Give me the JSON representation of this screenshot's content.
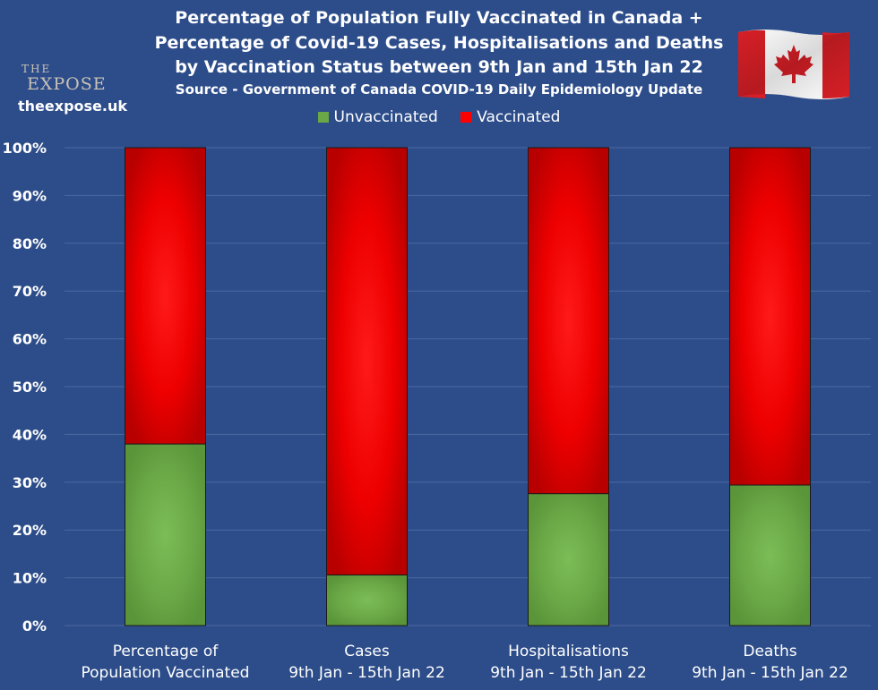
{
  "brand": {
    "logo_word1": "THE",
    "logo_word2": "EXPOSE",
    "site": "theexpose.uk"
  },
  "colors": {
    "background": "#2d4d8a",
    "unvaccinated": "#6aa746",
    "vaccinated": "#ff0000",
    "bar_edge": "#1a1a1a",
    "gridline": "#4b68a0"
  },
  "flag": {
    "icon": "canada-flag-icon"
  },
  "chart_data": {
    "type": "bar",
    "stacked": true,
    "title_lines": [
      "Percentage of Population Fully Vaccinated in Canada +",
      "Percentage of Covid-19 Cases, Hospitalisations and Deaths",
      "by Vaccination Status between 9th Jan and 15th Jan 22"
    ],
    "subtitle": "Source - Government of Canada COVID-19 Daily Epidemiology Update",
    "categories": [
      [
        "Percentage of",
        "Population Vaccinated"
      ],
      [
        "Cases",
        "9th Jan - 15th Jan 22"
      ],
      [
        "Hospitalisations",
        "9th Jan - 15th Jan 22"
      ],
      [
        "Deaths",
        "9th Jan - 15th Jan 22"
      ]
    ],
    "series": [
      {
        "name": "Unvaccinated",
        "values": [
          38,
          10.6,
          27.6,
          29.4
        ]
      },
      {
        "name": "Vaccinated",
        "values": [
          62,
          89.4,
          72.4,
          70.6
        ]
      }
    ],
    "ylim": [
      0,
      100
    ],
    "yticks": [
      "0%",
      "10%",
      "20%",
      "30%",
      "40%",
      "50%",
      "60%",
      "70%",
      "80%",
      "90%",
      "100%"
    ],
    "grid": true,
    "legend_position": "top"
  }
}
